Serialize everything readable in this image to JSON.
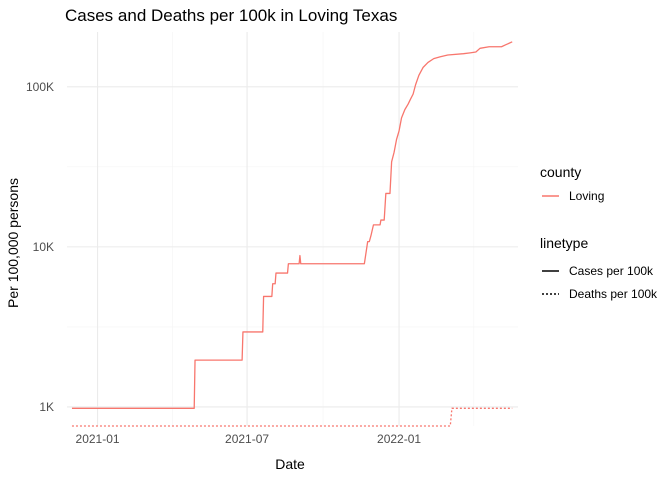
{
  "chart_data": {
    "type": "line",
    "title": "Cases and Deaths per 100k in Loving Texas",
    "xlabel": "Date",
    "ylabel": "Per 100,000 persons",
    "y_scale": "log10",
    "grid": true,
    "legend_placement": "right",
    "xlim": [
      "2020-11-25",
      "2022-05-25"
    ],
    "ylim": [
      760,
      220000
    ],
    "x_ticks": [
      {
        "date": "2021-01-01",
        "label": "2021-01"
      },
      {
        "date": "2021-07-01",
        "label": "2021-07"
      },
      {
        "date": "2022-01-01",
        "label": "2022-01"
      }
    ],
    "y_ticks": [
      {
        "value": 1000,
        "label": "1K"
      },
      {
        "value": 10000,
        "label": "10K"
      },
      {
        "value": 100000,
        "label": "100K"
      }
    ],
    "legend": {
      "color_title": "county",
      "color_entries": [
        {
          "label": "Loving",
          "color": "#F8766D"
        }
      ],
      "linetype_title": "linetype",
      "linetype_entries": [
        {
          "label": "Cases per 100k",
          "dash": "solid"
        },
        {
          "label": "Deaths per 100k",
          "dash": "dotted"
        }
      ]
    },
    "series": [
      {
        "name": "Cases per 100k",
        "county": "Loving",
        "color": "#F8766D",
        "dash": "solid",
        "points": [
          [
            "2020-12-01",
            980
          ],
          [
            "2021-04-28",
            980
          ],
          [
            "2021-04-29",
            1960
          ],
          [
            "2021-06-25",
            1960
          ],
          [
            "2021-06-26",
            2940
          ],
          [
            "2021-07-20",
            2940
          ],
          [
            "2021-07-21",
            4900
          ],
          [
            "2021-07-31",
            4900
          ],
          [
            "2021-08-01",
            5880
          ],
          [
            "2021-08-04",
            5880
          ],
          [
            "2021-08-05",
            6860
          ],
          [
            "2021-08-19",
            6860
          ],
          [
            "2021-08-20",
            7840
          ],
          [
            "2021-09-02",
            7840
          ],
          [
            "2021-09-03",
            8820
          ],
          [
            "2021-09-04",
            7840
          ],
          [
            "2021-11-20",
            7840
          ],
          [
            "2021-11-24",
            10780
          ],
          [
            "2021-11-26",
            10780
          ],
          [
            "2021-11-28",
            11760
          ],
          [
            "2021-12-01",
            13720
          ],
          [
            "2021-12-09",
            13720
          ],
          [
            "2021-12-10",
            14700
          ],
          [
            "2021-12-14",
            14700
          ],
          [
            "2021-12-16",
            21560
          ],
          [
            "2021-12-21",
            21560
          ],
          [
            "2021-12-23",
            34000
          ],
          [
            "2021-12-26",
            39000
          ],
          [
            "2021-12-29",
            47000
          ],
          [
            "2022-01-01",
            53000
          ],
          [
            "2022-01-04",
            64000
          ],
          [
            "2022-01-08",
            72000
          ],
          [
            "2022-01-12",
            78000
          ],
          [
            "2022-01-15",
            84000
          ],
          [
            "2022-01-18",
            90000
          ],
          [
            "2022-01-21",
            103000
          ],
          [
            "2022-01-25",
            118000
          ],
          [
            "2022-01-30",
            132000
          ],
          [
            "2022-02-05",
            142000
          ],
          [
            "2022-02-12",
            150000
          ],
          [
            "2022-02-20",
            154000
          ],
          [
            "2022-03-01",
            158000
          ],
          [
            "2022-03-20",
            161000
          ],
          [
            "2022-03-28",
            163000
          ],
          [
            "2022-04-04",
            165000
          ],
          [
            "2022-04-09",
            174000
          ],
          [
            "2022-04-20",
            178000
          ],
          [
            "2022-05-05",
            178000
          ],
          [
            "2022-05-10",
            183000
          ],
          [
            "2022-05-18",
            191000
          ]
        ]
      },
      {
        "name": "Deaths per 100k",
        "county": "Loving",
        "color": "#F8766D",
        "dash": "dotted",
        "points": [
          [
            "2020-12-01",
            760
          ],
          [
            "2022-03-04",
            760
          ],
          [
            "2022-03-06",
            980
          ],
          [
            "2022-05-18",
            980
          ]
        ]
      }
    ]
  }
}
